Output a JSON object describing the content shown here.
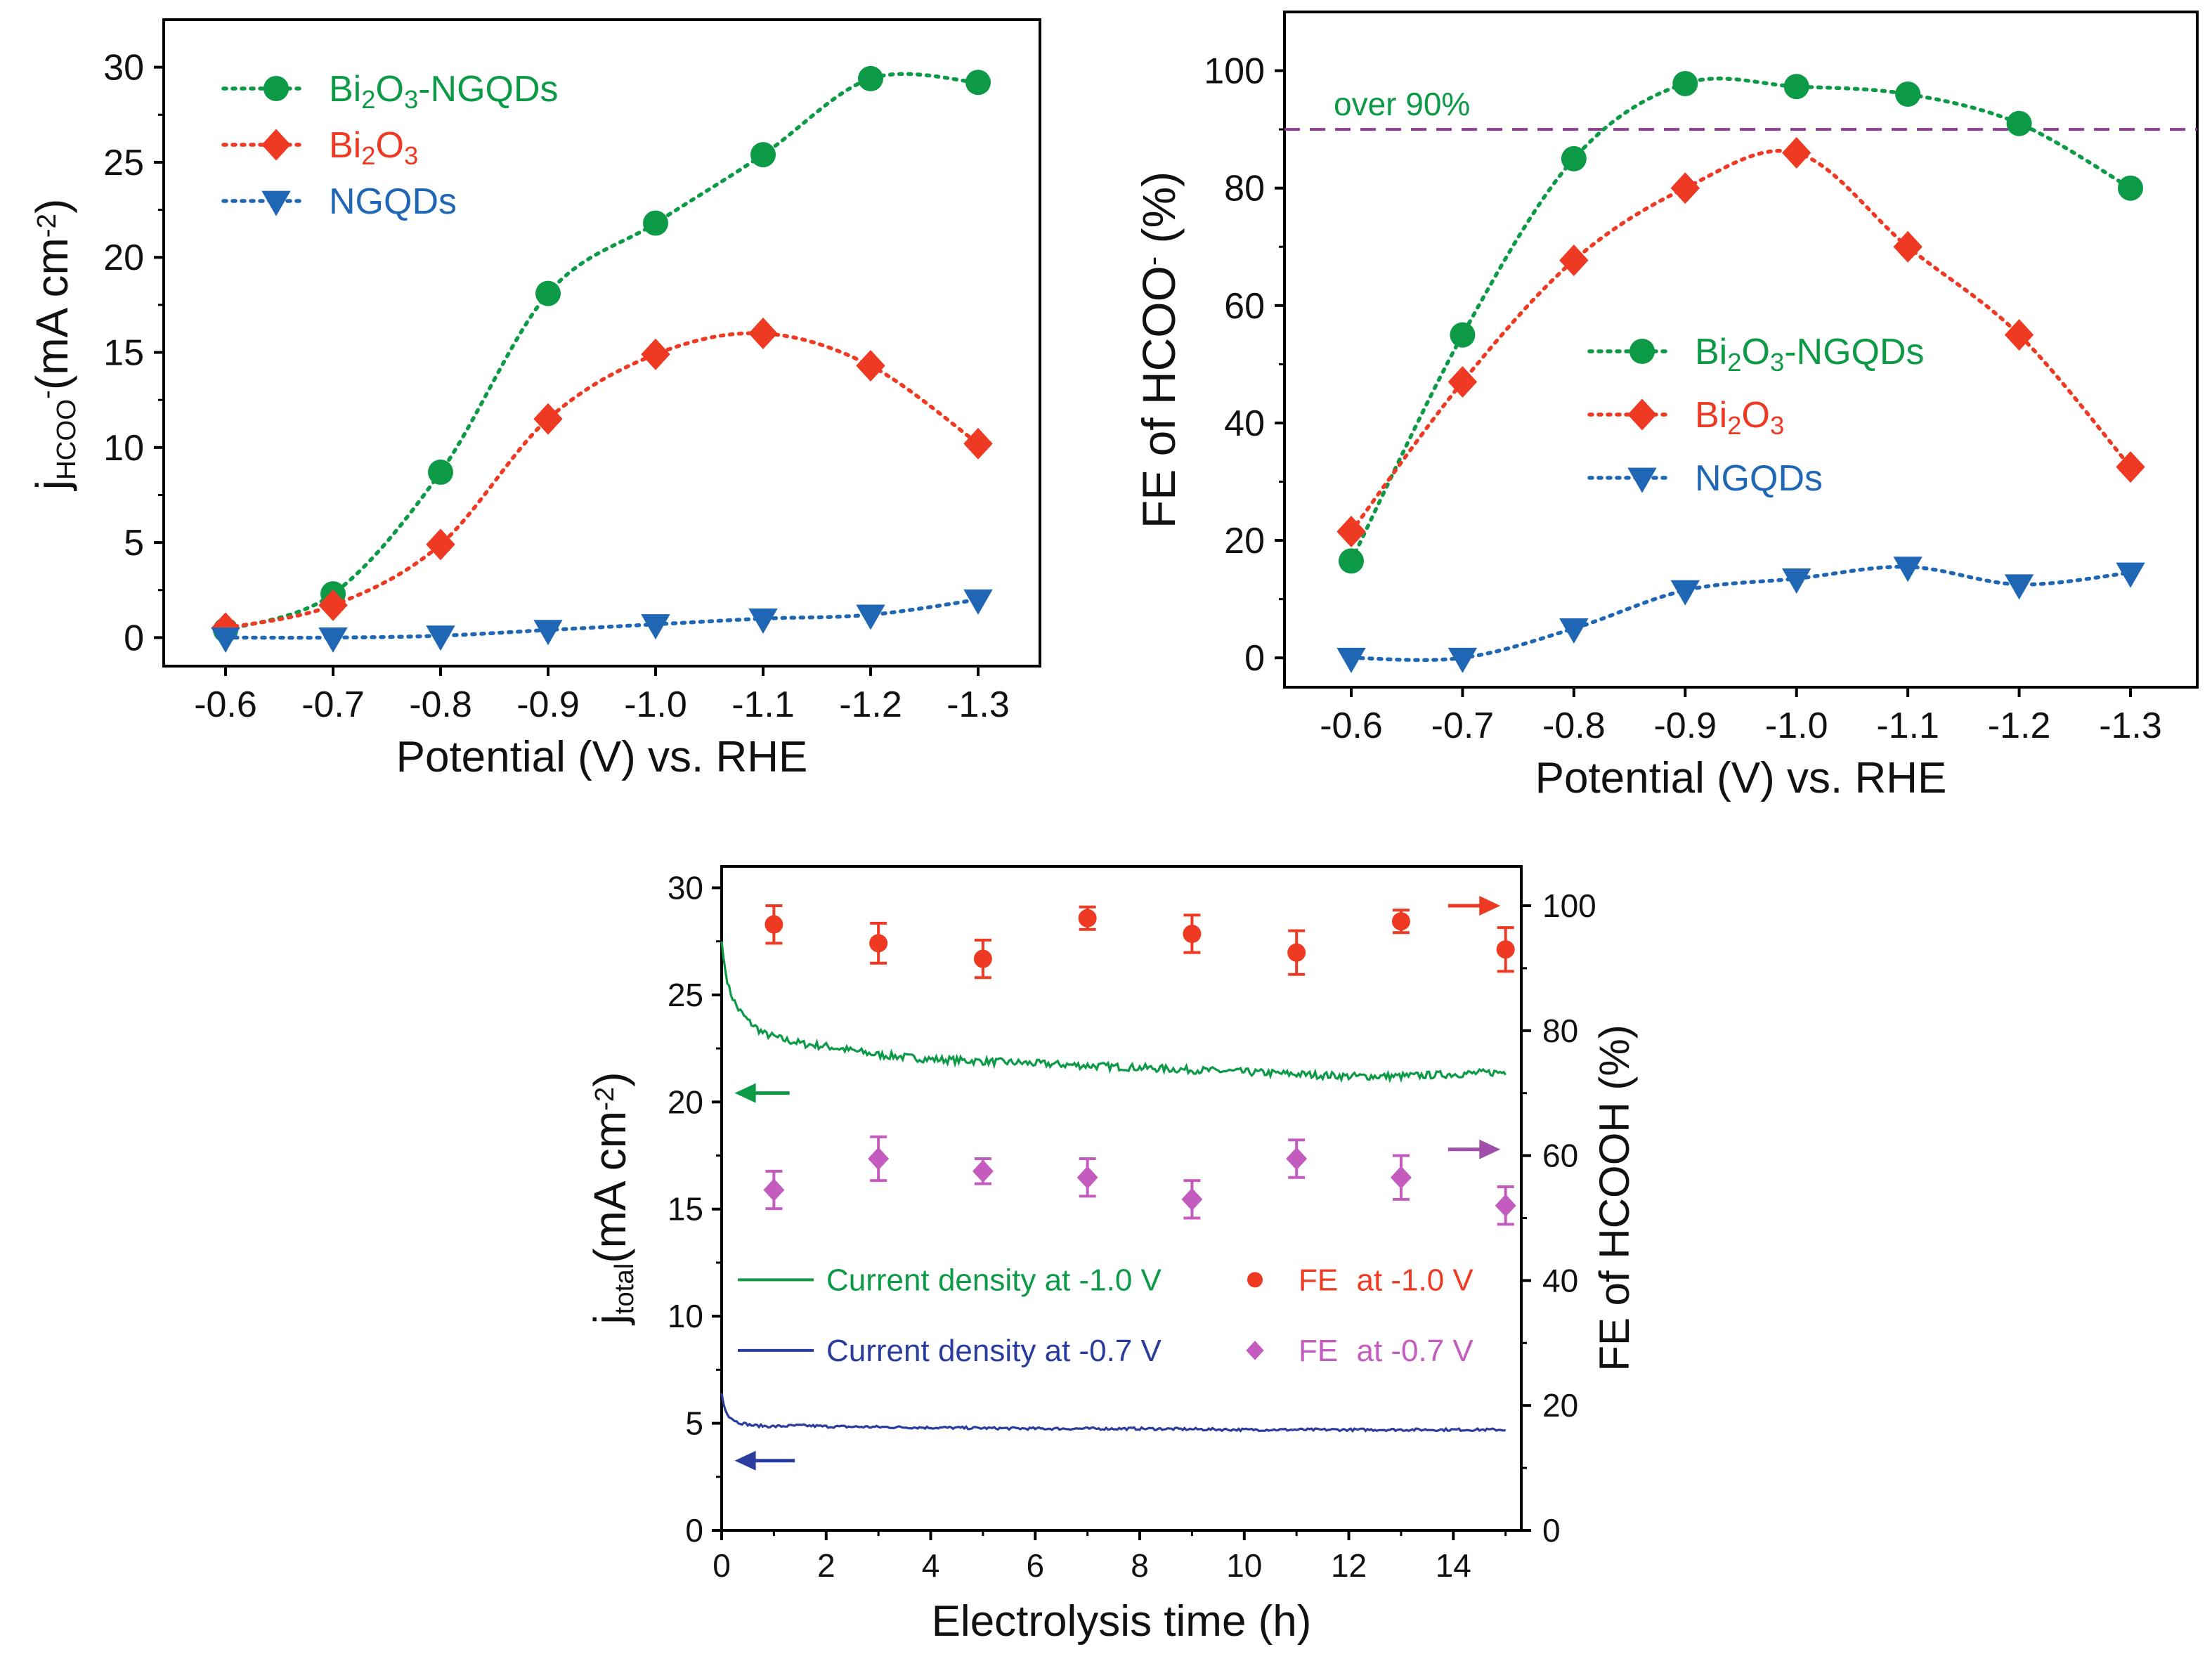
{
  "colors": {
    "green": "#0d9a47",
    "red": "#ee3a22",
    "blue": "#1f67b5",
    "blueLine": "#2a3c9e",
    "purple": "#a050a8",
    "dashed": "#8a3f8e",
    "magenta": "#c45cc0",
    "axis": "#000000"
  },
  "chart_data": [
    {
      "id": "a",
      "type": "line",
      "title": "",
      "xlabel": "Potential (V) vs. RHE",
      "ylabel_main": "j",
      "ylabel_sub": "HCOO",
      "ylabel_sup": "-",
      "ylabel_rest": "(mA cm",
      "ylabel_rest_sup": "-2",
      "ylabel_end": ")",
      "categories": [
        "-0.6",
        "-0.7",
        "-0.8",
        "-0.9",
        "-1.0",
        "-1.1",
        "-1.2",
        "-1.3"
      ],
      "yticks": [
        "0",
        "5",
        "10",
        "15",
        "20",
        "25",
        "30"
      ],
      "ylim": [
        -1.5,
        32.5
      ],
      "legend_position": "top-left",
      "series": [
        {
          "name": "Bi2O3-NGQDs",
          "label_parts": [
            "Bi",
            "2",
            "O",
            "3",
            "-NGQDs"
          ],
          "marker": "circle",
          "color_key": "green",
          "values": [
            0.4,
            2.3,
            8.7,
            18.1,
            21.8,
            25.4,
            29.4,
            29.2
          ]
        },
        {
          "name": "Bi2O3",
          "label_parts": [
            "Bi",
            "2",
            "O",
            "3",
            ""
          ],
          "marker": "diamond",
          "color_key": "red",
          "values": [
            0.5,
            1.7,
            4.9,
            11.5,
            14.9,
            16.0,
            14.3,
            10.2
          ]
        },
        {
          "name": "NGQDs",
          "label_parts": [
            "NGQDs",
            "",
            "",
            "",
            ""
          ],
          "marker": "triangle-down",
          "color_key": "blue",
          "values": [
            0.0,
            0.0,
            0.1,
            0.4,
            0.7,
            1.0,
            1.2,
            2.0
          ]
        }
      ]
    },
    {
      "id": "b",
      "type": "line",
      "title": "",
      "xlabel": "Potential (V) vs. RHE",
      "ylabel": "FE of HCOO",
      "ylabel_sup": "-",
      "ylabel_end": " (%)",
      "categories": [
        "-0.6",
        "-0.7",
        "-0.8",
        "-0.9",
        "-1.0",
        "-1.1",
        "-1.2",
        "-1.3"
      ],
      "yticks": [
        "0",
        "20",
        "40",
        "60",
        "80",
        "100"
      ],
      "ylim": [
        -5,
        110
      ],
      "reference_line": {
        "value": 90,
        "label": "over 90%"
      },
      "legend_position": "center-right",
      "series": [
        {
          "name": "Bi2O3-NGQDs",
          "label_parts": [
            "Bi",
            "2",
            "O",
            "3",
            "-NGQDs"
          ],
          "marker": "circle",
          "color_key": "green",
          "values": [
            16.5,
            55,
            85,
            97.8,
            97.3,
            96,
            91,
            80
          ]
        },
        {
          "name": "Bi2O3",
          "label_parts": [
            "Bi",
            "2",
            "O",
            "3",
            ""
          ],
          "marker": "diamond",
          "color_key": "red",
          "values": [
            21.5,
            47,
            67.7,
            80,
            86,
            70,
            55,
            32.5
          ]
        },
        {
          "name": "NGQDs",
          "label_parts": [
            "NGQDs",
            "",
            "",
            "",
            ""
          ],
          "marker": "triangle-down",
          "color_key": "blue",
          "values": [
            0,
            0,
            5,
            11.5,
            13.5,
            15.5,
            12.5,
            14.5
          ]
        }
      ]
    },
    {
      "id": "c",
      "type": "line+scatter",
      "title": "",
      "xlabel": "Electrolysis time (h)",
      "ylabel_left_main": "j",
      "ylabel_left_sub": "total",
      "ylabel_left_rest": "(mA cm",
      "ylabel_left_sup": "-2",
      "ylabel_left_end": ")",
      "ylabel_right": "FE of HCOOH (%)",
      "xticks": [
        "0",
        "2",
        "4",
        "6",
        "8",
        "10",
        "12",
        "14"
      ],
      "xlim": [
        0,
        15.3
      ],
      "yticks_left": [
        "0",
        "5",
        "10",
        "15",
        "20",
        "25",
        "30"
      ],
      "ylim_left": [
        0,
        31
      ],
      "yticks_right": [
        "0",
        "20",
        "40",
        "60",
        "80",
        "100"
      ],
      "ylim_right": [
        0,
        106.3
      ],
      "lines": [
        {
          "name": "Current density at -1.0 V",
          "color_key": "green",
          "x": [
            0,
            0.05,
            0.15,
            0.3,
            0.5,
            0.8,
            1.2,
            1.6,
            2,
            3,
            4,
            5,
            6,
            7,
            8,
            9,
            10,
            11,
            12,
            13,
            14,
            15
          ],
          "y": [
            27.5,
            26.4,
            25.2,
            24.4,
            23.8,
            23.2,
            22.9,
            22.7,
            22.6,
            22.2,
            22.0,
            21.9,
            21.8,
            21.7,
            21.6,
            21.5,
            21.4,
            21.3,
            21.2,
            21.2,
            21.3,
            21.4
          ]
        },
        {
          "name": "Current density at -0.7 V",
          "color_key": "blueLine",
          "x": [
            0,
            0.05,
            0.15,
            0.3,
            0.6,
            1.0,
            1.5,
            2,
            4,
            6,
            8,
            10,
            12,
            14,
            15
          ],
          "y": [
            6.4,
            5.7,
            5.3,
            5.05,
            4.9,
            4.85,
            4.9,
            4.85,
            4.8,
            4.75,
            4.75,
            4.7,
            4.7,
            4.7,
            4.7
          ]
        }
      ],
      "scatter": [
        {
          "name": "FE at -1.0 V",
          "label_main": "FE",
          "label_rest": "at -1.0 V",
          "marker": "circle",
          "color_key": "red",
          "x": [
            1,
            3,
            5,
            7,
            9,
            11,
            13,
            15
          ],
          "y": [
            97,
            94,
            91.5,
            98,
            95.5,
            92.5,
            97.5,
            93
          ],
          "err": [
            3,
            3.2,
            3,
            1.8,
            3,
            3.5,
            1.8,
            3.5
          ]
        },
        {
          "name": "FE at -0.7 V",
          "label_main": "FE",
          "label_rest": "at -0.7 V",
          "marker": "diamond",
          "color_key": "magenta",
          "x": [
            1,
            3,
            5,
            7,
            9,
            11,
            13,
            15
          ],
          "y": [
            54.5,
            59.5,
            57.5,
            56.5,
            53,
            59.5,
            56.5,
            52
          ],
          "err": [
            3,
            3.5,
            2,
            3,
            3,
            3,
            3.5,
            3
          ]
        }
      ],
      "arrows": [
        {
          "series": "Current density at -1.0 V",
          "axis": "left",
          "direction": "left",
          "color_key": "green"
        },
        {
          "series": "Current density at -0.7 V",
          "axis": "left",
          "direction": "left",
          "color_key": "blueLine"
        },
        {
          "series": "FE at -1.0 V",
          "axis": "right",
          "direction": "right",
          "color_key": "red"
        },
        {
          "series": "FE at -0.7 V",
          "axis": "right",
          "direction": "right",
          "color_key": "purple"
        }
      ]
    }
  ]
}
